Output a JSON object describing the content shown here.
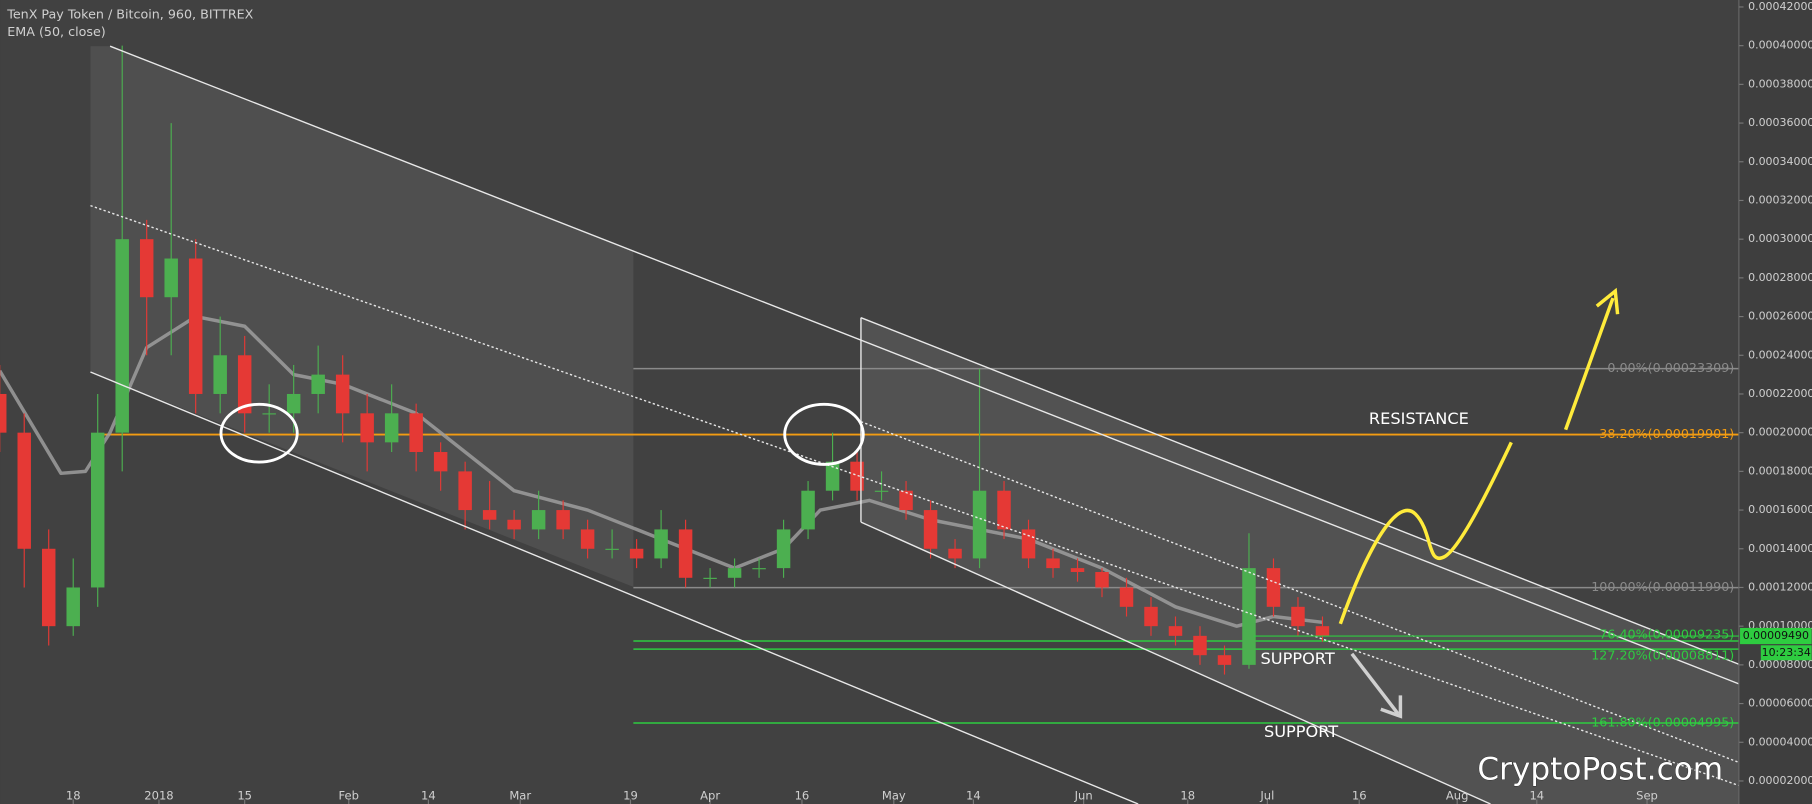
{
  "chart_data": {
    "type": "candlestick",
    "title": "TenX Pay Token / Bitcoin, 960, BITTREX",
    "xlim": [
      -11.9,
      272
    ],
    "ylim": [
      8.1e-06,
      0.0004236
    ],
    "xticks": [
      {
        "value": 0,
        "label": "18"
      },
      {
        "value": 14,
        "label": "2018"
      },
      {
        "value": 28,
        "label": "15"
      },
      {
        "value": 45,
        "label": "Feb"
      },
      {
        "value": 58,
        "label": "14"
      },
      {
        "value": 73,
        "label": "Mar"
      },
      {
        "value": 91,
        "label": "19"
      },
      {
        "value": 104,
        "label": "Apr"
      },
      {
        "value": 119,
        "label": "16"
      },
      {
        "value": 134,
        "label": "May"
      },
      {
        "value": 147,
        "label": "14"
      },
      {
        "value": 165,
        "label": "Jun"
      },
      {
        "value": 182,
        "label": "18"
      },
      {
        "value": 195,
        "label": "Jul"
      },
      {
        "value": 210,
        "label": "16"
      },
      {
        "value": 226,
        "label": "Aug"
      },
      {
        "value": 239,
        "label": "14"
      },
      {
        "value": 257,
        "label": "Sep"
      }
    ],
    "yticks": [
      {
        "value": 2e-05,
        "label": "0.00002000"
      },
      {
        "value": 4e-05,
        "label": "0.00004000"
      },
      {
        "value": 6e-05,
        "label": "0.00006000"
      },
      {
        "value": 8e-05,
        "label": "0.00008000"
      },
      {
        "value": 0.0001,
        "label": "0.00010000"
      },
      {
        "value": 0.00012,
        "label": "0.00012000"
      },
      {
        "value": 0.00014,
        "label": "0.00014000"
      },
      {
        "value": 0.00016,
        "label": "0.00016000"
      },
      {
        "value": 0.00018,
        "label": "0.00018000"
      },
      {
        "value": 0.0002,
        "label": "0.00020000"
      },
      {
        "value": 0.00022,
        "label": "0.00022000"
      },
      {
        "value": 0.00024,
        "label": "0.00024000"
      },
      {
        "value": 0.00026,
        "label": "0.00026000"
      },
      {
        "value": 0.00028,
        "label": "0.00028000"
      },
      {
        "value": 0.0003,
        "label": "0.00030000"
      },
      {
        "value": 0.00032,
        "label": "0.00032000"
      },
      {
        "value": 0.00034,
        "label": "0.00034000"
      },
      {
        "value": 0.00036,
        "label": "0.00036000"
      },
      {
        "value": 0.00038,
        "label": "0.00038000"
      },
      {
        "value": 0.0004,
        "label": "0.00040000"
      },
      {
        "value": 0.00042,
        "label": "0.00042000"
      }
    ],
    "up_color": "#4caf50",
    "down_color": "#e53935",
    "candles": {
      "x": [
        -12,
        -8,
        -4,
        0,
        4,
        8,
        12,
        16,
        20,
        24,
        28,
        32,
        36,
        40,
        44,
        48,
        52,
        56,
        60,
        64,
        68,
        72,
        76,
        80,
        84,
        88,
        92,
        96,
        100,
        104,
        108,
        112,
        116,
        120,
        124,
        128,
        132,
        136,
        140,
        144,
        148,
        152,
        156,
        160,
        164,
        168,
        172,
        176,
        180,
        184,
        188,
        192,
        196,
        200,
        204
      ],
      "open": [
        0.00022,
        0.0002,
        0.00014,
        0.0001,
        0.00012,
        0.0002,
        0.0003,
        0.00027,
        0.00029,
        0.00022,
        0.00024,
        0.00021,
        0.00021,
        0.00022,
        0.00023,
        0.00021,
        0.000195,
        0.00021,
        0.00019,
        0.00018,
        0.00016,
        0.000155,
        0.00015,
        0.00016,
        0.00015,
        0.00014,
        0.00014,
        0.000135,
        0.00015,
        0.000125,
        0.000125,
        0.00013,
        0.00013,
        0.00015,
        0.00017,
        0.000185,
        0.00017,
        0.00017,
        0.00016,
        0.00014,
        0.000135,
        0.00017,
        0.00015,
        0.000135,
        0.00013,
        0.000128,
        0.00012,
        0.00011,
        0.0001,
        9.5e-05,
        8.5e-05,
        8e-05,
        0.00013,
        0.00011,
        0.0001
      ],
      "high": [
        0.000235,
        0.00021,
        0.00015,
        0.000135,
        0.00022,
        0.0004,
        0.00031,
        0.00036,
        0.0003,
        0.00026,
        0.00025,
        0.000225,
        0.000235,
        0.000245,
        0.00024,
        0.00022,
        0.000225,
        0.000215,
        0.000195,
        0.000185,
        0.000175,
        0.00016,
        0.00017,
        0.000165,
        0.000155,
        0.00015,
        0.000145,
        0.00016,
        0.000155,
        0.00013,
        0.000135,
        0.000135,
        0.000155,
        0.000175,
        0.0002,
        0.00019,
        0.00018,
        0.000175,
        0.000165,
        0.000145,
        0.000233,
        0.000175,
        0.000155,
        0.00014,
        0.000135,
        0.00013,
        0.000125,
        0.000115,
        0.000105,
        0.0001,
        9e-05,
        0.000148,
        0.000135,
        0.000115,
        0.000105
      ],
      "low": [
        0.00019,
        0.00012,
        9e-05,
        9.5e-05,
        0.00011,
        0.00018,
        0.00024,
        0.00024,
        0.00021,
        0.00021,
        0.0002,
        0.0002,
        0.0002,
        0.00021,
        0.000195,
        0.00018,
        0.00019,
        0.00018,
        0.00017,
        0.00015,
        0.00015,
        0.000145,
        0.000145,
        0.000145,
        0.000135,
        0.000135,
        0.00013,
        0.00013,
        0.00012,
        0.00012,
        0.00012,
        0.000125,
        0.000125,
        0.000145,
        0.000165,
        0.000165,
        0.000165,
        0.000155,
        0.000135,
        0.00013,
        0.00013,
        0.000145,
        0.00013,
        0.000125,
        0.000123,
        0.000115,
        0.000105,
        9.5e-05,
        9e-05,
        8e-05,
        7.5e-05,
        7.8e-05,
        0.000105,
        9.5e-05,
        9.2e-05
      ],
      "close": [
        0.0002,
        0.00014,
        0.0001,
        0.00012,
        0.0002,
        0.0003,
        0.00027,
        0.00029,
        0.00022,
        0.00024,
        0.00021,
        0.00021,
        0.00022,
        0.00023,
        0.00021,
        0.000195,
        0.00021,
        0.00019,
        0.00018,
        0.00016,
        0.000155,
        0.00015,
        0.00016,
        0.00015,
        0.00014,
        0.00014,
        0.000135,
        0.00015,
        0.000125,
        0.000125,
        0.00013,
        0.00013,
        0.00015,
        0.00017,
        0.000185,
        0.00017,
        0.00017,
        0.00016,
        0.00014,
        0.000135,
        0.00017,
        0.00015,
        0.000135,
        0.00013,
        0.000128,
        0.00012,
        0.00011,
        0.0001,
        9.5e-05,
        8.5e-05,
        8e-05,
        0.00013,
        0.00011,
        0.0001,
        9.5e-05
      ]
    },
    "ema": {
      "name": "EMA (50, close)",
      "color": "#9e9e9e",
      "x": [
        -12,
        -2,
        2,
        6,
        12,
        20,
        28,
        36,
        44,
        56,
        64,
        72,
        84,
        96,
        108,
        116,
        122,
        130,
        140,
        148,
        156,
        168,
        180,
        190,
        196,
        204
      ],
      "values": [
        0.000232,
        0.000179,
        0.00018,
        0.0002,
        0.000244,
        0.00026,
        0.000255,
        0.00023,
        0.000225,
        0.00021,
        0.00019,
        0.00017,
        0.00016,
        0.000145,
        0.00013,
        0.00014,
        0.00016,
        0.000165,
        0.000155,
        0.00015,
        0.000145,
        0.00013,
        0.00011,
        0.0001,
        0.000105,
        0.000102
      ]
    },
    "fib_levels": [
      {
        "label": "0.00%(0.00023309)",
        "value": 0.00023309,
        "color": "#8a8a8a"
      },
      {
        "label": "38.20%(0.00019901)",
        "value": 0.00019901,
        "color": "#f39c12"
      },
      {
        "label": "100.00%(0.00011990)",
        "value": 0.0001199,
        "color": "#8a8a8a"
      },
      {
        "label": "76.40%(0.00009235)",
        "value": 9.235e-05,
        "color": "#2ecc40"
      },
      {
        "label": "127.20%(0.00008811)",
        "value": 8.811e-05,
        "color": "#2ecc40"
      },
      {
        "label": "161.80%(0.00004995)",
        "value": 4.995e-05,
        "color": "#2ecc40"
      }
    ],
    "last_price": {
      "value": 9.49e-05,
      "label": "0.00009490"
    },
    "countdown": "10:23:34",
    "annotations": [
      "RESISTANCE",
      "SUPPORT",
      "SUPPORT"
    ],
    "watermark": "CryptoPost.com"
  }
}
